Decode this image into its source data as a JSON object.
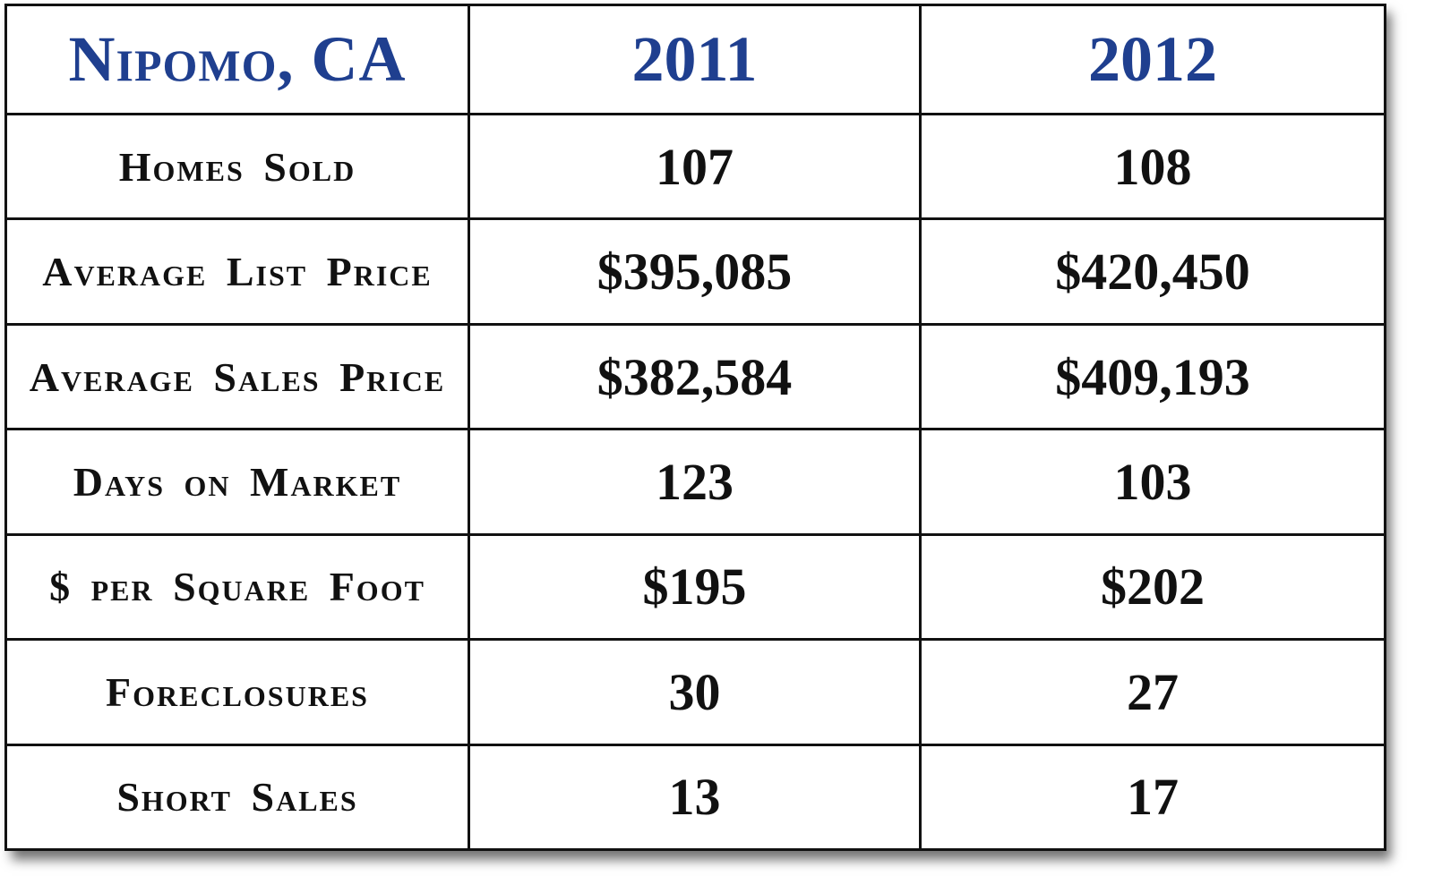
{
  "chart_data": {
    "type": "table",
    "title": "Nipomo, CA",
    "columns": [
      "2011",
      "2012"
    ],
    "rows": [
      {
        "label": "Homes Sold",
        "values": [
          "107",
          "108"
        ]
      },
      {
        "label": "Average List Price",
        "values": [
          "$395,085",
          "$420,450"
        ]
      },
      {
        "label": "Average Sales Price",
        "values": [
          "$382,584",
          "$409,193"
        ]
      },
      {
        "label": "Days on Market",
        "values": [
          "123",
          "103"
        ]
      },
      {
        "label": "$ per Square Foot",
        "values": [
          "$195",
          "$202"
        ]
      },
      {
        "label": "Foreclosures",
        "values": [
          "30",
          "27"
        ]
      },
      {
        "label": "Short Sales",
        "values": [
          "13",
          "17"
        ]
      }
    ],
    "colors": {
      "header": "#1f3f8f",
      "text": "#111111"
    }
  }
}
